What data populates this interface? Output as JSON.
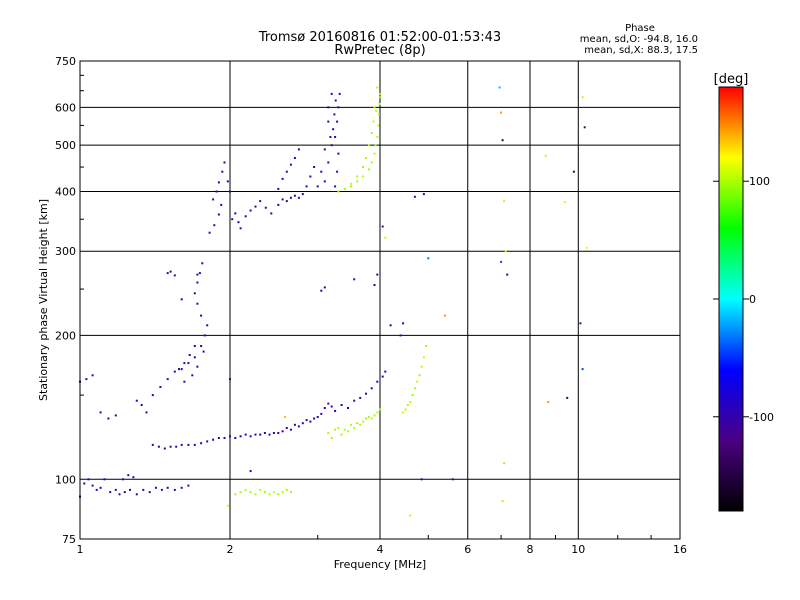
{
  "chart_data": {
    "type": "scatter",
    "title": "Tromsø 20160816 01:52:00-01:53:43",
    "subtitle": "RwPretec (8p)",
    "xlabel": "Frequency [MHz]",
    "ylabel": "Stationary phase Virtual Height [km]",
    "x_scale": "log",
    "y_scale": "log",
    "xlim": [
      1,
      16
    ],
    "ylim": [
      75,
      750
    ],
    "x_ticks": [
      1,
      2,
      4,
      6,
      8,
      10,
      16
    ],
    "x_tick_labels": [
      "1",
      "2",
      "4",
      "6",
      "8",
      "10",
      "16"
    ],
    "y_ticks": [
      75,
      100,
      200,
      300,
      400,
      500,
      600,
      750
    ],
    "y_tick_labels": [
      "75",
      "100",
      "200",
      "300",
      "400",
      "500",
      "600",
      "750"
    ],
    "grid": true,
    "stats": {
      "heading": "Phase",
      "o_line": "mean, sd,O: -94.8, 16.0",
      "x_line": "mean, sd,X:  88.3, 17.5"
    },
    "colorbar": {
      "label": "[deg]",
      "min": -180,
      "max": 180,
      "ticks": [
        100,
        0,
        -100
      ],
      "tick_labels": [
        "100",
        "0",
        "-100"
      ]
    },
    "color_scale": [
      "#000000",
      "#4b0082",
      "#0000ff",
      "#00ffff",
      "#00ff00",
      "#ffff00",
      "#ff0000"
    ],
    "series": [
      {
        "polarity": "O",
        "phase_deg": -100,
        "points": [
          [
            1.0,
            92
          ],
          [
            1.02,
            98
          ],
          [
            1.04,
            100
          ],
          [
            1.06,
            97
          ],
          [
            1.08,
            95
          ],
          [
            1.1,
            96
          ],
          [
            1.12,
            100
          ],
          [
            1.15,
            94
          ],
          [
            1.18,
            95
          ],
          [
            1.2,
            93
          ],
          [
            1.23,
            94
          ],
          [
            1.26,
            95
          ],
          [
            1.3,
            93
          ],
          [
            1.34,
            95
          ],
          [
            1.38,
            94
          ],
          [
            1.42,
            96
          ],
          [
            1.46,
            95
          ],
          [
            1.5,
            96
          ],
          [
            1.55,
            95
          ],
          [
            1.6,
            96
          ],
          [
            1.65,
            97
          ],
          [
            1.0,
            160
          ],
          [
            1.03,
            162
          ],
          [
            1.06,
            165
          ],
          [
            1.1,
            138
          ],
          [
            1.14,
            134
          ],
          [
            1.18,
            136
          ],
          [
            1.22,
            100
          ],
          [
            1.25,
            102
          ],
          [
            1.28,
            101
          ],
          [
            1.3,
            146
          ],
          [
            1.33,
            143
          ],
          [
            1.36,
            138
          ],
          [
            1.4,
            118
          ],
          [
            1.44,
            117
          ],
          [
            1.48,
            116
          ],
          [
            1.52,
            117
          ],
          [
            1.56,
            117
          ],
          [
            1.6,
            118
          ],
          [
            1.65,
            118
          ],
          [
            1.7,
            118
          ],
          [
            1.75,
            119
          ],
          [
            1.8,
            120
          ],
          [
            1.85,
            121
          ],
          [
            1.9,
            122
          ],
          [
            1.95,
            122
          ],
          [
            2.0,
            123
          ],
          [
            2.05,
            122
          ],
          [
            2.1,
            123
          ],
          [
            2.15,
            124
          ],
          [
            2.2,
            123
          ],
          [
            2.25,
            124
          ],
          [
            2.3,
            124
          ],
          [
            2.35,
            125
          ],
          [
            2.4,
            124
          ],
          [
            2.45,
            125
          ],
          [
            2.5,
            125
          ],
          [
            2.55,
            126
          ],
          [
            2.6,
            128
          ],
          [
            2.65,
            127
          ],
          [
            2.7,
            130
          ],
          [
            2.75,
            129
          ],
          [
            2.8,
            131
          ],
          [
            2.85,
            133
          ],
          [
            2.9,
            132
          ],
          [
            2.95,
            134
          ],
          [
            3.0,
            135
          ],
          [
            3.05,
            137
          ],
          [
            3.1,
            141
          ],
          [
            3.15,
            144
          ],
          [
            3.2,
            142
          ],
          [
            3.25,
            139
          ],
          [
            3.35,
            143
          ],
          [
            3.45,
            141
          ],
          [
            3.55,
            146
          ],
          [
            3.65,
            148
          ],
          [
            3.75,
            151
          ],
          [
            3.85,
            155
          ],
          [
            3.95,
            160
          ],
          [
            4.05,
            164
          ],
          [
            4.1,
            168
          ],
          [
            1.4,
            150
          ],
          [
            1.45,
            156
          ],
          [
            1.5,
            162
          ],
          [
            1.55,
            168
          ],
          [
            1.6,
            170
          ],
          [
            1.65,
            175
          ],
          [
            1.7,
            180
          ],
          [
            1.75,
            190
          ],
          [
            1.78,
            200
          ],
          [
            1.8,
            210
          ],
          [
            1.75,
            220
          ],
          [
            1.72,
            233
          ],
          [
            1.7,
            245
          ],
          [
            1.72,
            258
          ],
          [
            1.74,
            270
          ],
          [
            1.76,
            283
          ],
          [
            1.72,
            268
          ],
          [
            1.6,
            238
          ],
          [
            1.55,
            267
          ],
          [
            1.5,
            270
          ],
          [
            1.52,
            272
          ],
          [
            1.58,
            170
          ],
          [
            1.62,
            175
          ],
          [
            1.66,
            182
          ],
          [
            1.7,
            190
          ],
          [
            1.62,
            160
          ],
          [
            1.68,
            165
          ],
          [
            1.72,
            172
          ],
          [
            1.77,
            185
          ],
          [
            1.85,
            385
          ],
          [
            1.88,
            400
          ],
          [
            1.9,
            418
          ],
          [
            1.93,
            440
          ],
          [
            1.95,
            460
          ],
          [
            1.98,
            420
          ],
          [
            2.0,
            400
          ],
          [
            1.92,
            375
          ],
          [
            1.9,
            358
          ],
          [
            1.86,
            340
          ],
          [
            1.82,
            328
          ],
          [
            2.02,
            350
          ],
          [
            2.05,
            360
          ],
          [
            2.08,
            345
          ],
          [
            2.1,
            335
          ],
          [
            2.15,
            355
          ],
          [
            2.2,
            365
          ],
          [
            2.25,
            372
          ],
          [
            2.3,
            382
          ],
          [
            2.36,
            370
          ],
          [
            2.42,
            360
          ],
          [
            2.5,
            375
          ],
          [
            2.55,
            385
          ],
          [
            2.6,
            382
          ],
          [
            2.65,
            388
          ],
          [
            2.7,
            392
          ],
          [
            2.75,
            388
          ],
          [
            2.8,
            395
          ],
          [
            2.85,
            410
          ],
          [
            2.9,
            430
          ],
          [
            2.95,
            450
          ],
          [
            2.55,
            425
          ],
          [
            2.6,
            440
          ],
          [
            2.65,
            455
          ],
          [
            2.7,
            470
          ],
          [
            2.75,
            490
          ],
          [
            2.5,
            405
          ],
          [
            3.1,
            420
          ],
          [
            3.15,
            460
          ],
          [
            3.2,
            500
          ],
          [
            3.22,
            540
          ],
          [
            3.24,
            580
          ],
          [
            3.26,
            620
          ],
          [
            3.2,
            640
          ],
          [
            3.15,
            560
          ],
          [
            3.1,
            490
          ],
          [
            3.05,
            440
          ],
          [
            3.0,
            410
          ],
          [
            3.25,
            520
          ],
          [
            3.28,
            560
          ],
          [
            3.3,
            600
          ],
          [
            3.32,
            640
          ],
          [
            3.3,
            480
          ],
          [
            3.28,
            440
          ],
          [
            3.25,
            410
          ],
          [
            3.15,
            600
          ],
          [
            3.18,
            520
          ],
          [
            3.05,
            248
          ],
          [
            3.1,
            252
          ],
          [
            3.55,
            262
          ],
          [
            3.9,
            255
          ],
          [
            3.95,
            268
          ],
          [
            4.4,
            200
          ],
          [
            4.45,
            212
          ],
          [
            4.7,
            390
          ]
        ]
      },
      {
        "polarity": "X",
        "phase_deg": 100,
        "points": [
          [
            2.05,
            93
          ],
          [
            2.1,
            94
          ],
          [
            2.15,
            95
          ],
          [
            2.2,
            94
          ],
          [
            2.25,
            93
          ],
          [
            2.3,
            95
          ],
          [
            2.35,
            94
          ],
          [
            2.4,
            93
          ],
          [
            2.45,
            94
          ],
          [
            2.5,
            93
          ],
          [
            2.55,
            94
          ],
          [
            2.6,
            95
          ],
          [
            2.65,
            94
          ],
          [
            3.15,
            125
          ],
          [
            3.2,
            122
          ],
          [
            3.25,
            127
          ],
          [
            3.3,
            128
          ],
          [
            3.35,
            124
          ],
          [
            3.4,
            127
          ],
          [
            3.45,
            126
          ],
          [
            3.5,
            130
          ],
          [
            3.55,
            128
          ],
          [
            3.6,
            131
          ],
          [
            3.65,
            130
          ],
          [
            3.7,
            132
          ],
          [
            3.75,
            134
          ],
          [
            3.8,
            135
          ],
          [
            3.85,
            134
          ],
          [
            3.9,
            136
          ],
          [
            3.95,
            138
          ],
          [
            4.0,
            140
          ],
          [
            4.55,
            143
          ],
          [
            4.6,
            145
          ],
          [
            4.65,
            150
          ],
          [
            4.7,
            155
          ],
          [
            4.75,
            160
          ],
          [
            4.8,
            165
          ],
          [
            4.85,
            172
          ],
          [
            4.9,
            180
          ],
          [
            4.95,
            190
          ],
          [
            4.5,
            140
          ],
          [
            4.45,
            138
          ],
          [
            3.3,
            400
          ],
          [
            3.4,
            405
          ],
          [
            3.5,
            410
          ],
          [
            3.6,
            420
          ],
          [
            3.7,
            430
          ],
          [
            3.8,
            445
          ],
          [
            3.85,
            460
          ],
          [
            3.9,
            480
          ],
          [
            3.92,
            500
          ],
          [
            3.95,
            520
          ],
          [
            3.97,
            550
          ],
          [
            3.98,
            580
          ],
          [
            3.99,
            610
          ],
          [
            4.0,
            640
          ],
          [
            3.9,
            600
          ],
          [
            3.88,
            560
          ],
          [
            3.85,
            530
          ],
          [
            3.8,
            500
          ],
          [
            3.75,
            470
          ],
          [
            3.7,
            450
          ],
          [
            3.6,
            430
          ],
          [
            3.5,
            415
          ],
          [
            3.4,
            405
          ],
          [
            3.95,
            660
          ],
          [
            4.0,
            630
          ],
          [
            3.93,
            590
          ]
        ]
      }
    ],
    "scattered_points": [
      [
        2.2,
        104,
        -60
      ],
      [
        1.98,
        88,
        110
      ],
      [
        4.6,
        84,
        110
      ],
      [
        4.05,
        338,
        -100
      ],
      [
        4.1,
        320,
        110
      ],
      [
        5.0,
        290,
        -30
      ],
      [
        5.4,
        220,
        150
      ],
      [
        4.2,
        210,
        -90
      ],
      [
        2.58,
        135,
        140
      ],
      [
        2.0,
        162,
        -120
      ],
      [
        4.85,
        100,
        -90
      ],
      [
        5.6,
        100,
        -100
      ],
      [
        4.9,
        395,
        -100
      ],
      [
        6.95,
        660,
        -10
      ],
      [
        7.0,
        585,
        150
      ],
      [
        7.05,
        512,
        -140
      ],
      [
        7.1,
        382,
        110
      ],
      [
        7.15,
        300,
        110
      ],
      [
        7.0,
        285,
        -40
      ],
      [
        7.2,
        268,
        -120
      ],
      [
        7.1,
        108,
        100
      ],
      [
        7.05,
        90,
        100
      ],
      [
        8.6,
        475,
        110
      ],
      [
        8.7,
        145,
        150
      ],
      [
        9.4,
        380,
        130
      ],
      [
        9.5,
        148,
        -130
      ],
      [
        9.8,
        440,
        -140
      ],
      [
        10.2,
        630,
        110
      ],
      [
        10.3,
        545,
        -120
      ],
      [
        10.4,
        305,
        120
      ],
      [
        10.1,
        212,
        -110
      ],
      [
        10.2,
        170,
        -40
      ]
    ]
  }
}
